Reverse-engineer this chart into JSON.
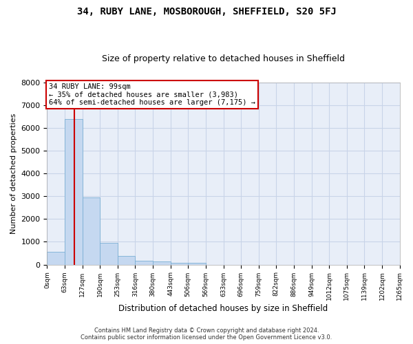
{
  "title": "34, RUBY LANE, MOSBOROUGH, SHEFFIELD, S20 5FJ",
  "subtitle": "Size of property relative to detached houses in Sheffield",
  "xlabel": "Distribution of detached houses by size in Sheffield",
  "ylabel": "Number of detached properties",
  "footer_line1": "Contains HM Land Registry data © Crown copyright and database right 2024.",
  "footer_line2": "Contains public sector information licensed under the Open Government Licence v3.0.",
  "bin_labels": [
    "0sqm",
    "63sqm",
    "127sqm",
    "190sqm",
    "253sqm",
    "316sqm",
    "380sqm",
    "443sqm",
    "506sqm",
    "569sqm",
    "633sqm",
    "696sqm",
    "759sqm",
    "822sqm",
    "886sqm",
    "949sqm",
    "1012sqm",
    "1075sqm",
    "1139sqm",
    "1202sqm",
    "1265sqm"
  ],
  "bar_heights": [
    550,
    6400,
    2950,
    950,
    380,
    175,
    125,
    90,
    70,
    0,
    0,
    0,
    0,
    0,
    0,
    0,
    0,
    0,
    0,
    0
  ],
  "bin_edges": [
    0,
    63,
    127,
    190,
    253,
    316,
    380,
    443,
    506,
    569,
    633,
    696,
    759,
    822,
    886,
    949,
    1012,
    1075,
    1139,
    1202,
    1265
  ],
  "bar_color": "#c5d8f0",
  "bar_edgecolor": "#7aafd4",
  "red_line_x": 99,
  "red_line_color": "#cc0000",
  "annotation_title": "34 RUBY LANE: 99sqm",
  "annotation_line1": "← 35% of detached houses are smaller (3,983)",
  "annotation_line2": "64% of semi-detached houses are larger (7,175) →",
  "annotation_box_facecolor": "#ffffff",
  "annotation_box_edgecolor": "#cc0000",
  "grid_color": "#c8d4e8",
  "background_color": "#e8eef8",
  "ylim": [
    0,
    8000
  ],
  "yticks": [
    0,
    1000,
    2000,
    3000,
    4000,
    5000,
    6000,
    7000,
    8000
  ]
}
